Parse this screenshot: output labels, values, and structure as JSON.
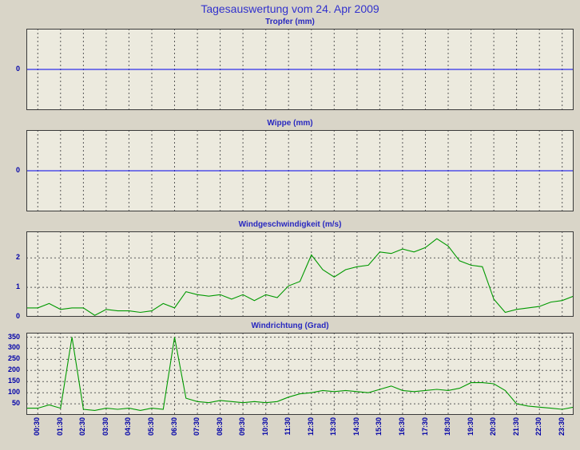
{
  "page": {
    "title": "Tagesauswertung vom 24. Apr 2009"
  },
  "colors": {
    "background": "#d9d5c8",
    "chart_background": "#eceade",
    "chart_border": "#3a3a3a",
    "grid": "#5a5a5a",
    "title_text": "#3232cd",
    "axis_text": "#0000a8",
    "rain_line": "#0000ee",
    "wind_line": "#009900"
  },
  "x_axis": {
    "labels": [
      "00:30",
      "01:30",
      "02:30",
      "03:30",
      "04:30",
      "05:30",
      "06:30",
      "07:30",
      "08:30",
      "09:30",
      "10:30",
      "11:30",
      "12:30",
      "13:30",
      "14:30",
      "15:30",
      "16:30",
      "17:30",
      "18:30",
      "19:30",
      "20:30",
      "21:30",
      "22:30",
      "23:30"
    ],
    "hours": [
      0.5,
      1,
      1.5,
      2,
      2.5,
      3,
      3.5,
      4,
      4.5,
      5,
      5.5,
      6,
      6.5,
      7,
      7.5,
      8,
      8.5,
      9,
      9.5,
      10,
      10.5,
      11,
      11.5,
      12,
      12.5,
      13,
      13.5,
      14,
      14.5,
      15,
      15.5,
      16,
      16.5,
      17,
      17.5,
      18,
      18.5,
      19,
      19.5,
      20,
      20.5,
      21,
      21.5,
      22,
      22.5,
      23,
      23.5,
      24
    ]
  },
  "chart_data": [
    {
      "type": "line",
      "title": "Tropfer (mm)",
      "ylim": [
        -1,
        1
      ],
      "yticks": [
        {
          "value": 0,
          "label": "0"
        }
      ],
      "ygrid": [],
      "series": [
        {
          "name": "Tropfer",
          "color_key": "rain_line",
          "values": [
            0,
            0,
            0,
            0,
            0,
            0,
            0,
            0,
            0,
            0,
            0,
            0,
            0,
            0,
            0,
            0,
            0,
            0,
            0,
            0,
            0,
            0,
            0,
            0,
            0,
            0,
            0,
            0,
            0,
            0,
            0,
            0,
            0,
            0,
            0,
            0,
            0,
            0,
            0,
            0,
            0,
            0,
            0,
            0,
            0,
            0,
            0,
            0
          ]
        }
      ]
    },
    {
      "type": "line",
      "title": "Wippe (mm)",
      "ylim": [
        -1,
        1
      ],
      "yticks": [
        {
          "value": 0,
          "label": "0"
        }
      ],
      "ygrid": [],
      "series": [
        {
          "name": "Wippe",
          "color_key": "rain_line",
          "values": [
            0,
            0,
            0,
            0,
            0,
            0,
            0,
            0,
            0,
            0,
            0,
            0,
            0,
            0,
            0,
            0,
            0,
            0,
            0,
            0,
            0,
            0,
            0,
            0,
            0,
            0,
            0,
            0,
            0,
            0,
            0,
            0,
            0,
            0,
            0,
            0,
            0,
            0,
            0,
            0,
            0,
            0,
            0,
            0,
            0,
            0,
            0,
            0
          ]
        }
      ]
    },
    {
      "type": "line",
      "title": "Windgeschwindigkeit (m/s)",
      "ylim": [
        0,
        2.9
      ],
      "yticks": [
        {
          "value": 0,
          "label": "0"
        },
        {
          "value": 1,
          "label": "1"
        },
        {
          "value": 2,
          "label": "2"
        }
      ],
      "ygrid": [
        1,
        2
      ],
      "series": [
        {
          "name": "Windgeschwindigkeit",
          "color_key": "wind_line",
          "values": [
            0.3,
            0.45,
            0.25,
            0.3,
            0.3,
            0.05,
            0.25,
            0.2,
            0.2,
            0.15,
            0.2,
            0.45,
            0.3,
            0.85,
            0.75,
            0.7,
            0.75,
            0.6,
            0.75,
            0.55,
            0.75,
            0.65,
            1.05,
            1.2,
            2.1,
            1.6,
            1.35,
            1.6,
            1.7,
            1.75,
            2.2,
            2.15,
            2.3,
            2.2,
            2.35,
            2.65,
            2.4,
            1.9,
            1.75,
            1.7,
            0.6,
            0.15,
            0.25,
            0.3,
            0.35,
            0.5,
            0.55,
            0.7
          ]
        }
      ]
    },
    {
      "type": "line",
      "title": "Windrichtung (Grad)",
      "ylim": [
        0,
        370
      ],
      "yticks": [
        {
          "value": 50,
          "label": "50"
        },
        {
          "value": 100,
          "label": "100"
        },
        {
          "value": 150,
          "label": "150"
        },
        {
          "value": 200,
          "label": "200"
        },
        {
          "value": 250,
          "label": "250"
        },
        {
          "value": 300,
          "label": "300"
        },
        {
          "value": 350,
          "label": "350"
        }
      ],
      "ygrid": [
        50,
        100,
        150,
        200,
        250,
        300,
        350
      ],
      "series": [
        {
          "name": "Windrichtung",
          "color_key": "wind_line",
          "values": [
            30,
            45,
            30,
            350,
            25,
            20,
            30,
            25,
            30,
            20,
            30,
            25,
            350,
            75,
            60,
            55,
            65,
            60,
            55,
            60,
            55,
            60,
            80,
            95,
            100,
            110,
            105,
            110,
            105,
            100,
            115,
            130,
            110,
            105,
            110,
            115,
            110,
            120,
            145,
            145,
            140,
            110,
            50,
            40,
            35,
            30,
            25,
            35
          ]
        }
      ]
    }
  ]
}
